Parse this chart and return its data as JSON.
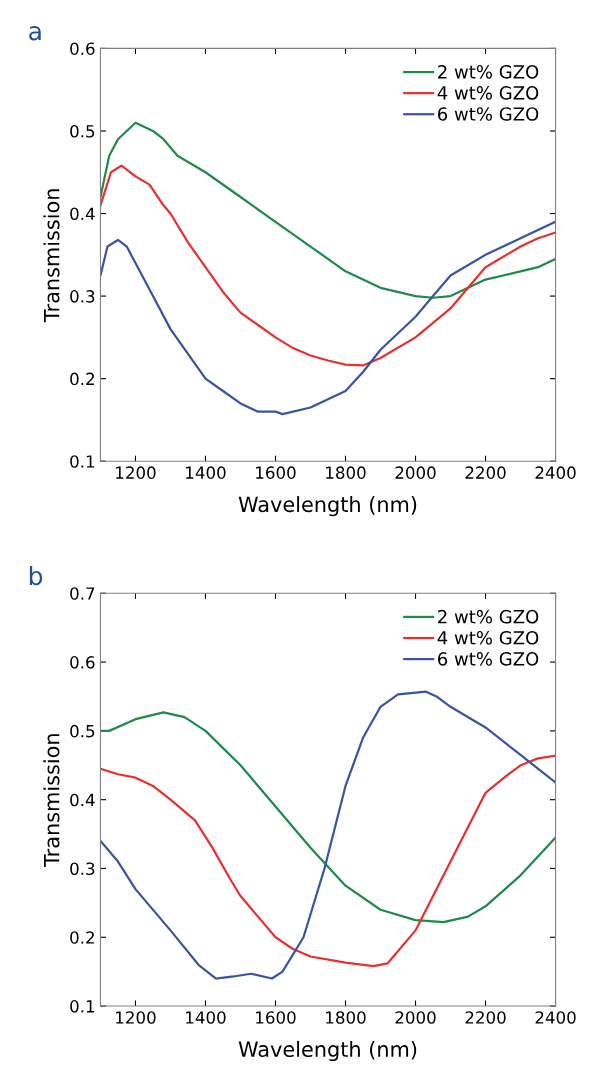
{
  "chart_data": [
    {
      "type": "line",
      "title": "a",
      "xlabel": "Wavelength (nm)",
      "ylabel": "Transmission",
      "xlim": [
        1100,
        2400
      ],
      "xticks": [
        1200,
        1400,
        1600,
        1800,
        2000,
        2200,
        2400
      ],
      "ylim": [
        0.1,
        0.6
      ],
      "yticks": [
        0.1,
        0.2,
        0.3,
        0.4,
        0.5,
        0.6
      ],
      "grid": false,
      "legend": "top right",
      "series": [
        {
          "name": "2 wt% GZO",
          "color": "#1f8a4c",
          "x": [
            1100,
            1125,
            1150,
            1175,
            1200,
            1250,
            1280,
            1320,
            1400,
            1500,
            1600,
            1700,
            1800,
            1900,
            2000,
            2050,
            2100,
            2150,
            2200,
            2300,
            2350,
            2400
          ],
          "values": [
            0.42,
            0.47,
            0.49,
            0.5,
            0.51,
            0.5,
            0.49,
            0.47,
            0.45,
            0.42,
            0.39,
            0.36,
            0.33,
            0.31,
            0.3,
            0.298,
            0.3,
            0.31,
            0.32,
            0.33,
            0.335,
            0.345
          ]
        },
        {
          "name": "4 wt% GZO",
          "color": "#e8312f",
          "x": [
            1100,
            1130,
            1160,
            1200,
            1240,
            1280,
            1300,
            1350,
            1400,
            1450,
            1500,
            1550,
            1600,
            1650,
            1700,
            1750,
            1800,
            1850,
            1900,
            2000,
            2100,
            2150,
            2200,
            2300,
            2350,
            2400
          ],
          "values": [
            0.41,
            0.45,
            0.458,
            0.445,
            0.435,
            0.41,
            0.4,
            0.365,
            0.335,
            0.305,
            0.28,
            0.265,
            0.25,
            0.237,
            0.228,
            0.222,
            0.217,
            0.216,
            0.225,
            0.25,
            0.285,
            0.31,
            0.335,
            0.36,
            0.37,
            0.377
          ]
        },
        {
          "name": "6 wt% GZO",
          "color": "#3a54a4",
          "x": [
            1100,
            1120,
            1150,
            1175,
            1200,
            1250,
            1300,
            1350,
            1400,
            1450,
            1500,
            1550,
            1600,
            1620,
            1700,
            1800,
            1850,
            1900,
            2000,
            2050,
            2100,
            2200,
            2300,
            2400
          ],
          "values": [
            0.325,
            0.36,
            0.368,
            0.36,
            0.34,
            0.3,
            0.26,
            0.23,
            0.2,
            0.185,
            0.17,
            0.16,
            0.16,
            0.157,
            0.165,
            0.185,
            0.208,
            0.235,
            0.275,
            0.3,
            0.325,
            0.35,
            0.37,
            0.39
          ]
        }
      ]
    },
    {
      "type": "line",
      "title": "b",
      "xlabel": "Wavelength (nm)",
      "ylabel": "Transmission",
      "xlim": [
        1100,
        2400
      ],
      "xticks": [
        1200,
        1400,
        1600,
        1800,
        2000,
        2200,
        2400
      ],
      "ylim": [
        0.1,
        0.7
      ],
      "yticks": [
        0.1,
        0.2,
        0.3,
        0.4,
        0.5,
        0.6,
        0.7
      ],
      "grid": false,
      "legend": "top right",
      "series": [
        {
          "name": "2 wt% GZO",
          "color": "#1f8a4c",
          "x": [
            1100,
            1125,
            1200,
            1280,
            1340,
            1400,
            1500,
            1600,
            1700,
            1800,
            1900,
            2000,
            2080,
            2150,
            2200,
            2300,
            2400
          ],
          "values": [
            0.5,
            0.5,
            0.517,
            0.527,
            0.52,
            0.5,
            0.45,
            0.39,
            0.33,
            0.275,
            0.24,
            0.225,
            0.222,
            0.23,
            0.245,
            0.29,
            0.345
          ]
        },
        {
          "name": "4 wt% GZO",
          "color": "#e8312f",
          "x": [
            1100,
            1150,
            1200,
            1250,
            1300,
            1370,
            1420,
            1470,
            1500,
            1550,
            1600,
            1650,
            1700,
            1800,
            1880,
            1920,
            2000,
            2100,
            2200,
            2260,
            2300,
            2350,
            2400
          ],
          "values": [
            0.445,
            0.437,
            0.432,
            0.42,
            0.4,
            0.37,
            0.33,
            0.285,
            0.26,
            0.23,
            0.2,
            0.183,
            0.172,
            0.163,
            0.158,
            0.162,
            0.21,
            0.31,
            0.41,
            0.435,
            0.45,
            0.46,
            0.464
          ]
        },
        {
          "name": "6 wt% GZO",
          "color": "#3a54a4",
          "x": [
            1100,
            1150,
            1200,
            1300,
            1380,
            1430,
            1480,
            1530,
            1590,
            1620,
            1680,
            1740,
            1800,
            1850,
            1900,
            1950,
            2030,
            2060,
            2100,
            2200,
            2300,
            2400
          ],
          "values": [
            0.34,
            0.31,
            0.27,
            0.21,
            0.16,
            0.14,
            0.143,
            0.147,
            0.14,
            0.15,
            0.2,
            0.3,
            0.42,
            0.49,
            0.535,
            0.553,
            0.557,
            0.55,
            0.535,
            0.505,
            0.465,
            0.425
          ]
        }
      ]
    }
  ]
}
